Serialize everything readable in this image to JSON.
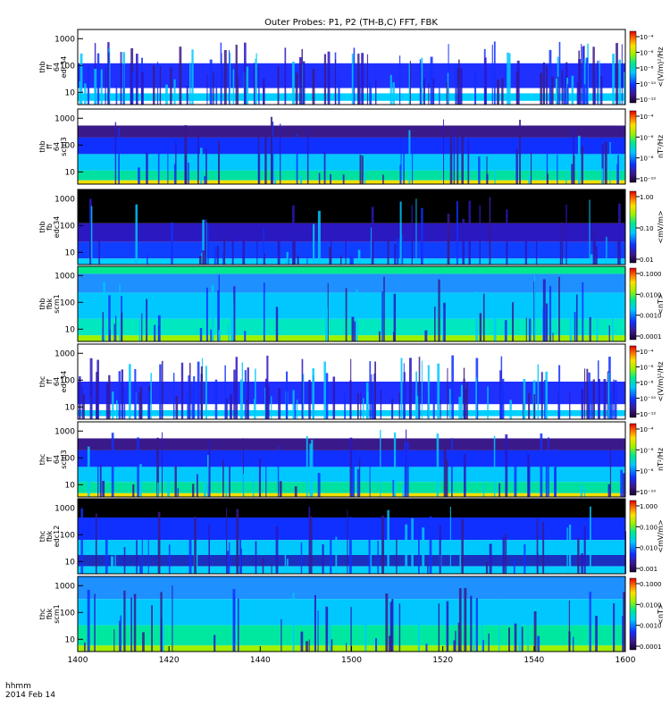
{
  "title": "Outer Probes: P1, P2 (TH-B,C) FFT, FBK",
  "time_axis": {
    "ticks": [
      "1400",
      "1420",
      "1440",
      "1500",
      "1520",
      "1540",
      "1600"
    ],
    "label_line1": "hhmm",
    "label_line2": "2014 Feb 14"
  },
  "chart_data": [
    {
      "type": "heatmap",
      "probe": "thb",
      "label_lines": [
        "thb",
        "ff",
        "64",
        "edc34"
      ],
      "yticks": [
        "10",
        "100",
        "1000"
      ],
      "colorbar_unit": "<(V/m)²/Hz",
      "colorbar_ticks": [
        "10⁻¹²",
        "10⁻¹⁰",
        "10⁻⁸",
        "10⁻⁶",
        "10⁻⁴"
      ],
      "log_scale": true
    },
    {
      "type": "heatmap",
      "probe": "thb",
      "label_lines": [
        "thb",
        "ff",
        "64",
        "scm3"
      ],
      "yticks": [
        "10",
        "100",
        "1000"
      ],
      "colorbar_unit": "nT²/Hz",
      "colorbar_ticks": [
        "10⁻¹⁰",
        "10⁻⁸",
        "10⁻⁶",
        "10⁻⁴"
      ],
      "log_scale": true
    },
    {
      "type": "heatmap",
      "probe": "thb",
      "label_lines": [
        "thb",
        "fb",
        "edc34"
      ],
      "yticks": [
        "10",
        "100",
        "1000"
      ],
      "colorbar_unit": "<mV/m>",
      "colorbar_ticks": [
        "0.01",
        "0.10",
        "1.00"
      ],
      "log_scale": true
    },
    {
      "type": "heatmap",
      "probe": "thb",
      "label_lines": [
        "thb",
        "fbk",
        "scm1"
      ],
      "yticks": [
        "10",
        "100",
        "1000"
      ],
      "colorbar_unit": "<nT>",
      "colorbar_ticks": [
        "0.0001",
        "0.0010",
        "0.0100",
        "0.1000"
      ],
      "log_scale": true
    },
    {
      "type": "heatmap",
      "probe": "thc",
      "label_lines": [
        "thc",
        "ff",
        "64",
        "edc34"
      ],
      "yticks": [
        "10",
        "100",
        "1000"
      ],
      "colorbar_unit": "<(V/m)²/Hz",
      "colorbar_ticks": [
        "10⁻¹²",
        "10⁻¹⁰",
        "10⁻⁸",
        "10⁻⁶",
        "10⁻⁴"
      ],
      "log_scale": true
    },
    {
      "type": "heatmap",
      "probe": "thc",
      "label_lines": [
        "thc",
        "ff",
        "64",
        "scm3"
      ],
      "yticks": [
        "10",
        "100",
        "1000"
      ],
      "colorbar_unit": "nT²/Hz",
      "colorbar_ticks": [
        "10⁻¹⁰",
        "10⁻⁸",
        "10⁻⁶",
        "10⁻⁴"
      ],
      "log_scale": true
    },
    {
      "type": "heatmap",
      "probe": "thc",
      "label_lines": [
        "thc",
        "fbk",
        "edc12"
      ],
      "yticks": [
        "10",
        "100",
        "1000"
      ],
      "colorbar_unit": "<mV/m>",
      "colorbar_ticks": [
        "0.001",
        "0.010",
        "0.100",
        "1.000"
      ],
      "log_scale": true
    },
    {
      "type": "heatmap",
      "probe": "thc",
      "label_lines": [
        "thc",
        "fbk",
        "scm1"
      ],
      "yticks": [
        "10",
        "100",
        "1000"
      ],
      "colorbar_unit": "<nT>",
      "colorbar_ticks": [
        "0.0001",
        "0.0010",
        "0.0100",
        "0.1000"
      ],
      "log_scale": true
    }
  ]
}
